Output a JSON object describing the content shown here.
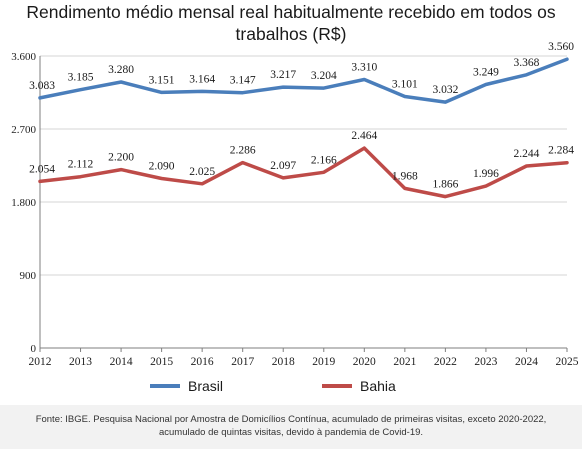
{
  "chart_data": {
    "type": "line",
    "title_lines": [
      "Rendimento médio mensal real habitualmente recebido em todos os",
      "trabalhos (R$)"
    ],
    "categories": [
      "2012",
      "2013",
      "2014",
      "2015",
      "2016",
      "2017",
      "2018",
      "2019",
      "2020",
      "2021",
      "2022",
      "2023",
      "2024",
      "2025"
    ],
    "series": [
      {
        "name": "Brasil",
        "color": "#4a7ebb",
        "values": [
          3083,
          3185,
          3280,
          3151,
          3164,
          3147,
          3217,
          3204,
          3310,
          3101,
          3032,
          3249,
          3368,
          3560
        ],
        "labels": [
          "3.083",
          "3.185",
          "3.280",
          "3.151",
          "3.164",
          "3.147",
          "3.217",
          "3.204",
          "3.310",
          "3.101",
          "3.032",
          "3.249",
          "3.368",
          "3.560"
        ]
      },
      {
        "name": "Bahia",
        "color": "#be4b48",
        "values": [
          2054,
          2112,
          2200,
          2090,
          2025,
          2286,
          2097,
          2166,
          2464,
          1968,
          1866,
          1996,
          2244,
          2284
        ],
        "labels": [
          "2.054",
          "2.112",
          "2.200",
          "2.090",
          "2.025",
          "2.286",
          "2.097",
          "2.166",
          "2.464",
          "1.968",
          "1.866",
          "1.996",
          "2.244",
          "2.284"
        ]
      }
    ],
    "y_ticks": [
      0,
      900,
      1800,
      2700,
      3600
    ],
    "y_tick_labels": [
      "0",
      "900",
      "1.800",
      "2.700",
      "3.600"
    ],
    "ylim": [
      0,
      3600
    ],
    "grid": true,
    "legend_position": "bottom",
    "note": "Fonte: IBGE. Pesquisa Nacional por Amostra de Domicílios Contínua, acumulado de primeiras visitas, exceto 2020-2022, acumulado de quintas visitas, devido à pandemia de Covid-19."
  }
}
